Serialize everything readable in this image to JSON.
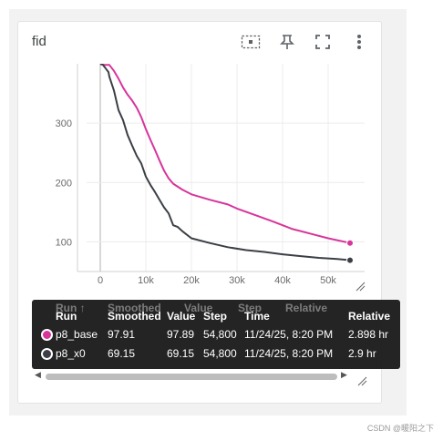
{
  "card": {
    "title": "fid"
  },
  "toolbar": {
    "icons": [
      "select-region-icon",
      "pin-icon",
      "fullscreen-icon",
      "more-vert-icon"
    ]
  },
  "chart_data": {
    "type": "line",
    "title": "fid",
    "xlabel": "",
    "ylabel": "",
    "xlim": [
      -3000,
      58000
    ],
    "ylim": [
      50,
      400
    ],
    "x_ticks": [
      0,
      10000,
      20000,
      30000,
      40000,
      50000
    ],
    "x_tick_labels": [
      "0",
      "10k",
      "20k",
      "30k",
      "40k",
      "50k"
    ],
    "y_ticks": [
      100,
      200,
      300
    ],
    "y_tick_labels": [
      "100",
      "200",
      "300"
    ],
    "grid": true,
    "series": [
      {
        "name": "p8_base",
        "color": "#d7359b",
        "points": [
          [
            0,
            400
          ],
          [
            1000,
            398
          ],
          [
            2000,
            398
          ],
          [
            2600,
            392
          ],
          [
            3000,
            388
          ],
          [
            4000,
            375
          ],
          [
            5000,
            360
          ],
          [
            6000,
            348
          ],
          [
            7000,
            338
          ],
          [
            8000,
            326
          ],
          [
            9000,
            310
          ],
          [
            10000,
            290
          ],
          [
            11000,
            272
          ],
          [
            12000,
            255
          ],
          [
            13000,
            237
          ],
          [
            14000,
            220
          ],
          [
            15000,
            207
          ],
          [
            16000,
            198
          ],
          [
            18000,
            188
          ],
          [
            20000,
            180
          ],
          [
            24000,
            171
          ],
          [
            28000,
            163
          ],
          [
            30000,
            156
          ],
          [
            34000,
            145
          ],
          [
            38000,
            134
          ],
          [
            42000,
            122
          ],
          [
            46000,
            114
          ],
          [
            50000,
            106
          ],
          [
            54800,
            98
          ]
        ]
      },
      {
        "name": "p8_x0",
        "color": "#3b3f45",
        "points": [
          [
            0,
            400
          ],
          [
            600,
            398
          ],
          [
            1200,
            392
          ],
          [
            1800,
            386
          ],
          [
            2000,
            378
          ],
          [
            3000,
            355
          ],
          [
            4000,
            322
          ],
          [
            5000,
            305
          ],
          [
            6000,
            280
          ],
          [
            7000,
            262
          ],
          [
            8000,
            245
          ],
          [
            9000,
            232
          ],
          [
            10000,
            210
          ],
          [
            11000,
            196
          ],
          [
            12000,
            184
          ],
          [
            13000,
            171
          ],
          [
            14000,
            158
          ],
          [
            15000,
            148
          ],
          [
            16000,
            128
          ],
          [
            17000,
            125
          ],
          [
            18000,
            118
          ],
          [
            20000,
            106
          ],
          [
            24000,
            98
          ],
          [
            28000,
            91
          ],
          [
            32000,
            86
          ],
          [
            36000,
            83
          ],
          [
            40000,
            79
          ],
          [
            44000,
            76
          ],
          [
            48000,
            73
          ],
          [
            52000,
            71
          ],
          [
            54800,
            69
          ]
        ]
      }
    ]
  },
  "tooltip": {
    "headers": {
      "run": "Run",
      "smoothed": "Smoothed",
      "value": "Value",
      "step": "Step",
      "time": "Time",
      "relative": "Relative"
    },
    "ghost_headers": {
      "run": "Run ↑",
      "smoothed": "Smoothed",
      "value": "Value",
      "step": "Step",
      "relative": "Relative"
    },
    "rows": [
      {
        "run": "p8_base",
        "color": "#d7359b",
        "smoothed": "97.91",
        "value": "97.89",
        "step": "54,800",
        "time": "11/24/25, 8:20 PM",
        "relative": "2.898 hr"
      },
      {
        "run": "p8_x0",
        "color": "#3b3f45",
        "smoothed": "69.15",
        "value": "69.15",
        "step": "54,800",
        "time": "11/24/25, 8:20 PM",
        "relative": "2.9 hr"
      }
    ]
  },
  "watermark": "CSDN @暖阳之下"
}
